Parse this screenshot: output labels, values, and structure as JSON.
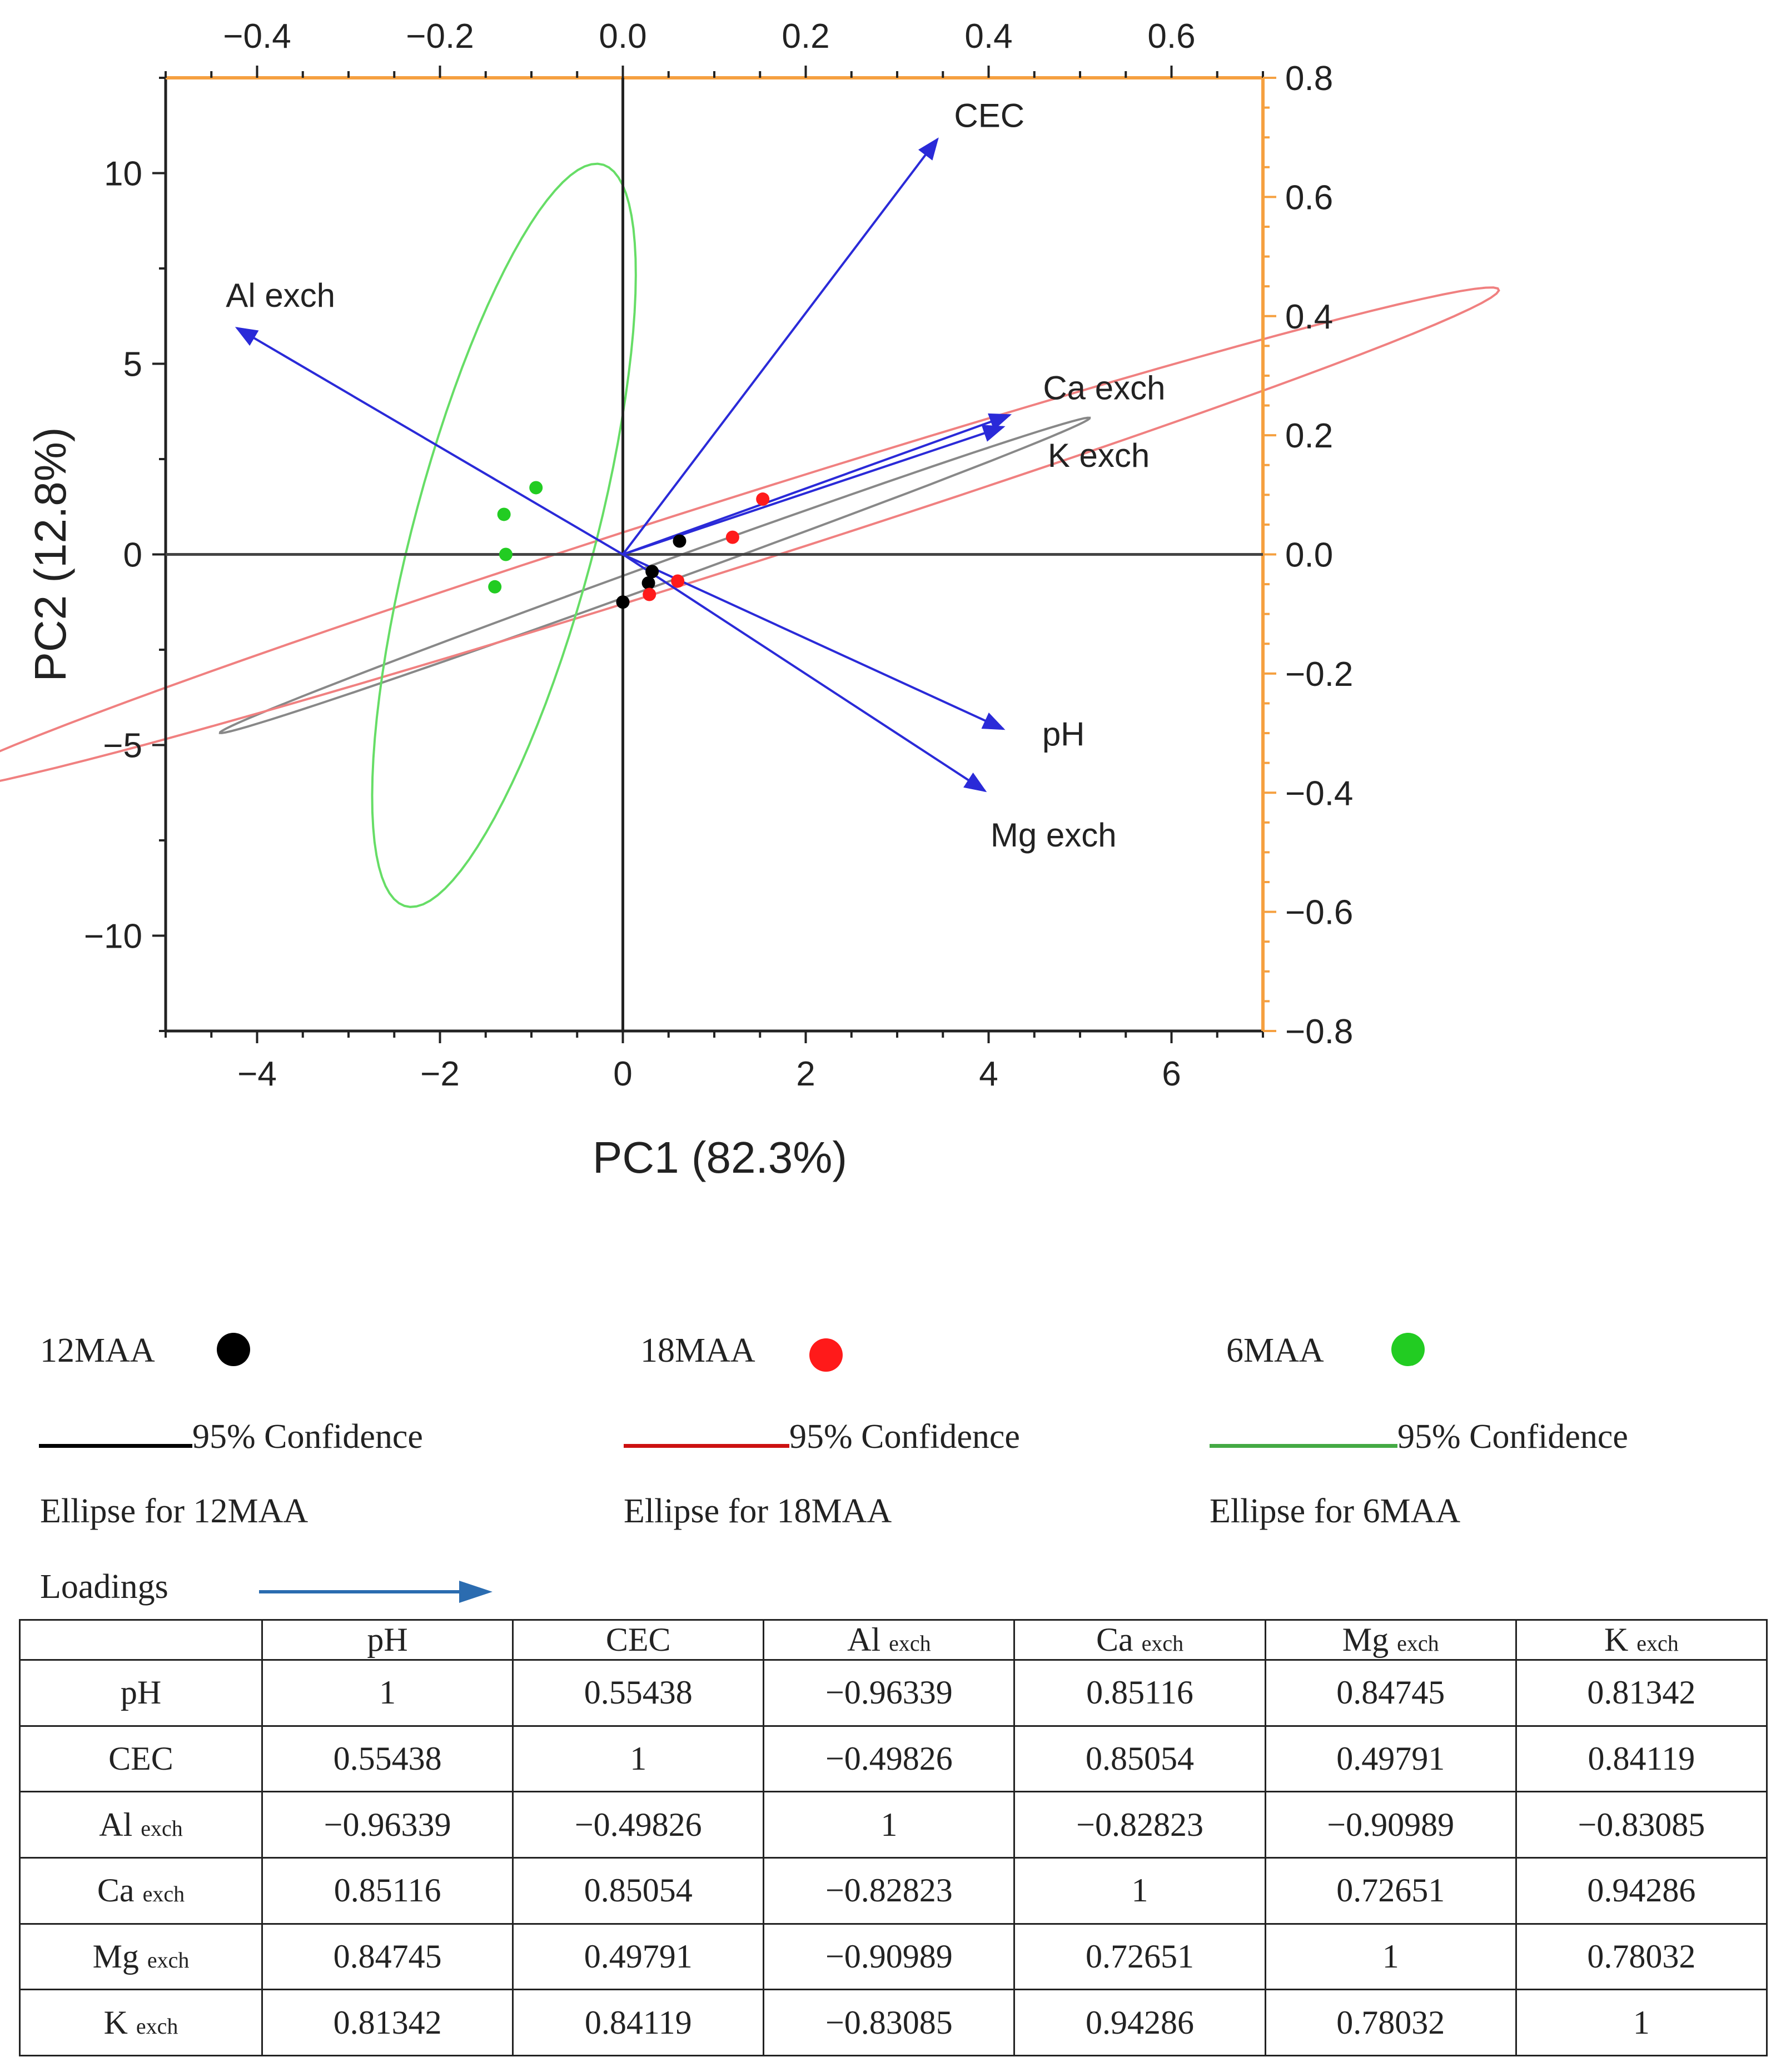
{
  "chart_data": {
    "type": "scatter",
    "xlabel": "PC1 (82.3%)",
    "ylabel": "PC2 (12.8%)",
    "xlim": [
      -5,
      7
    ],
    "ylim": [
      -12.5,
      12.5
    ],
    "x_ticks": [
      "−4",
      "−2",
      "0",
      "2",
      "4",
      "6"
    ],
    "y_ticks": [
      "10",
      "5",
      "0",
      "−5",
      "−10"
    ],
    "top_xlim": [
      -0.5,
      0.7
    ],
    "top_ticks": [
      "−0.4",
      "−0.2",
      "0.0",
      "0.2",
      "0.4",
      "0.6"
    ],
    "right_ylim": [
      -0.8,
      0.8
    ],
    "right_ticks": [
      "0.8",
      "0.6",
      "0.4",
      "0.2",
      "0.0",
      "−0.2",
      "−0.4",
      "−0.6",
      "−0.8"
    ],
    "series": [
      {
        "name": "12MAA",
        "color": "#000000",
        "points": [
          [
            0.62,
            0.35
          ],
          [
            0.32,
            -0.45
          ],
          [
            0.28,
            -0.75
          ],
          [
            0.0,
            -1.25
          ]
        ]
      },
      {
        "name": "18MAA",
        "color": "#ff1a1a",
        "points": [
          [
            1.53,
            1.45
          ],
          [
            1.2,
            0.45
          ],
          [
            0.6,
            -0.7
          ],
          [
            0.29,
            -1.05
          ]
        ]
      },
      {
        "name": "6MAA",
        "color": "#22cc22",
        "points": [
          [
            -0.95,
            1.75
          ],
          [
            -1.3,
            1.05
          ],
          [
            -1.28,
            0.0
          ],
          [
            -1.4,
            -0.85
          ]
        ]
      }
    ],
    "ellipses": [
      {
        "name": "95% Confidence Ellipse for 12MAA",
        "color": "#888888",
        "cx": 0.35,
        "cy": -0.55,
        "rx": 6.3,
        "ry": 0.22,
        "angle_deg": 41
      },
      {
        "name": "95% Confidence Ellipse for 18MAA",
        "color": "#f08080",
        "cx": 1.0,
        "cy": 0.4,
        "rx": 10.8,
        "ry": 0.75,
        "angle_deg": 37.5
      },
      {
        "name": "95% Confidence Ellipse for 6MAA",
        "color": "#66dd66",
        "cx": -1.3,
        "cy": 0.5,
        "rx": 9.8,
        "ry": 1.02,
        "angle_deg": 84
      }
    ],
    "loadings": [
      {
        "label": "CEC",
        "x": 0.344,
        "y": 0.697
      },
      {
        "label": "Al exch",
        "x": -0.422,
        "y": 0.38
      },
      {
        "label": "Ca exch",
        "x": 0.423,
        "y": 0.234
      },
      {
        "label": "K exch",
        "x": 0.416,
        "y": 0.214
      },
      {
        "label": "pH",
        "x": 0.416,
        "y": -0.293
      },
      {
        "label": "Mg exch",
        "x": 0.396,
        "y": -0.397
      }
    ]
  },
  "legend": {
    "items": [
      {
        "label": "12MAA",
        "color": "#000000"
      },
      {
        "label": "18MAA",
        "color": "#ff1a1a"
      },
      {
        "label": "6MAA",
        "color": "#22cc22"
      }
    ],
    "ellipses": [
      {
        "line_label": "95% Confidence",
        "caption": "Ellipse for 12MAA",
        "color": "#000000"
      },
      {
        "line_label": "95% Confidence",
        "caption": "Ellipse for 18MAA",
        "color": "#cc1111"
      },
      {
        "line_label": "95% Confidence",
        "caption": "Ellipse for 6MAA",
        "color": "#44aa44"
      }
    ],
    "loadings_label": "Loadings",
    "loadings_color": "#2b6cb0"
  },
  "table": {
    "headers": [
      "",
      "pH",
      "CEC",
      "Al",
      "Ca",
      "Mg",
      "K"
    ],
    "header_subs": [
      "",
      "",
      "",
      "exch",
      "exch",
      "exch",
      "exch"
    ],
    "rows": [
      {
        "label": "pH",
        "sub": "",
        "values": [
          "1",
          "0.55438",
          "−0.96339",
          "0.85116",
          "0.84745",
          "0.81342"
        ]
      },
      {
        "label": "CEC",
        "sub": "",
        "values": [
          "0.55438",
          "1",
          "−0.49826",
          "0.85054",
          "0.49791",
          "0.84119"
        ]
      },
      {
        "label": "Al",
        "sub": "exch",
        "values": [
          "−0.96339",
          "−0.49826",
          "1",
          "−0.82823",
          "−0.90989",
          "−0.83085"
        ]
      },
      {
        "label": "Ca",
        "sub": "exch",
        "values": [
          "0.85116",
          "0.85054",
          "−0.82823",
          "1",
          "0.72651",
          "0.94286"
        ]
      },
      {
        "label": "Mg",
        "sub": "exch",
        "values": [
          "0.84745",
          "0.49791",
          "−0.90989",
          "0.72651",
          "1",
          "0.78032"
        ]
      },
      {
        "label": "K",
        "sub": "exch",
        "values": [
          "0.81342",
          "0.84119",
          "−0.83085",
          "0.94286",
          "0.78032",
          "1"
        ]
      }
    ]
  }
}
